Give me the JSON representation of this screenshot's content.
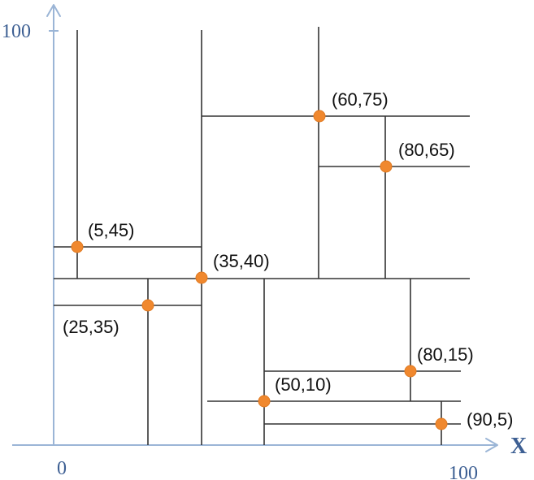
{
  "axes": {
    "y_max_label": "100",
    "origin_label": "0",
    "x_max_label": "100",
    "x_axis_name": "X"
  },
  "colors": {
    "axis": "#9bb5d6",
    "axis_text": "#3d5f93",
    "split_line": "#333333",
    "point": "#f0882e"
  },
  "points": [
    {
      "label": "(60,75)",
      "x": 60,
      "y": 75
    },
    {
      "label": "(80,65)",
      "x": 80,
      "y": 65
    },
    {
      "label": "(5,45)",
      "x": 5,
      "y": 45
    },
    {
      "label": "(35,40)",
      "x": 35,
      "y": 40
    },
    {
      "label": "(25,35)",
      "x": 25,
      "y": 35
    },
    {
      "label": "(80,15)",
      "x": 80,
      "y": 15
    },
    {
      "label": "(50,10)",
      "x": 50,
      "y": 10
    },
    {
      "label": "(90,5)",
      "x": 90,
      "y": 5
    }
  ]
}
